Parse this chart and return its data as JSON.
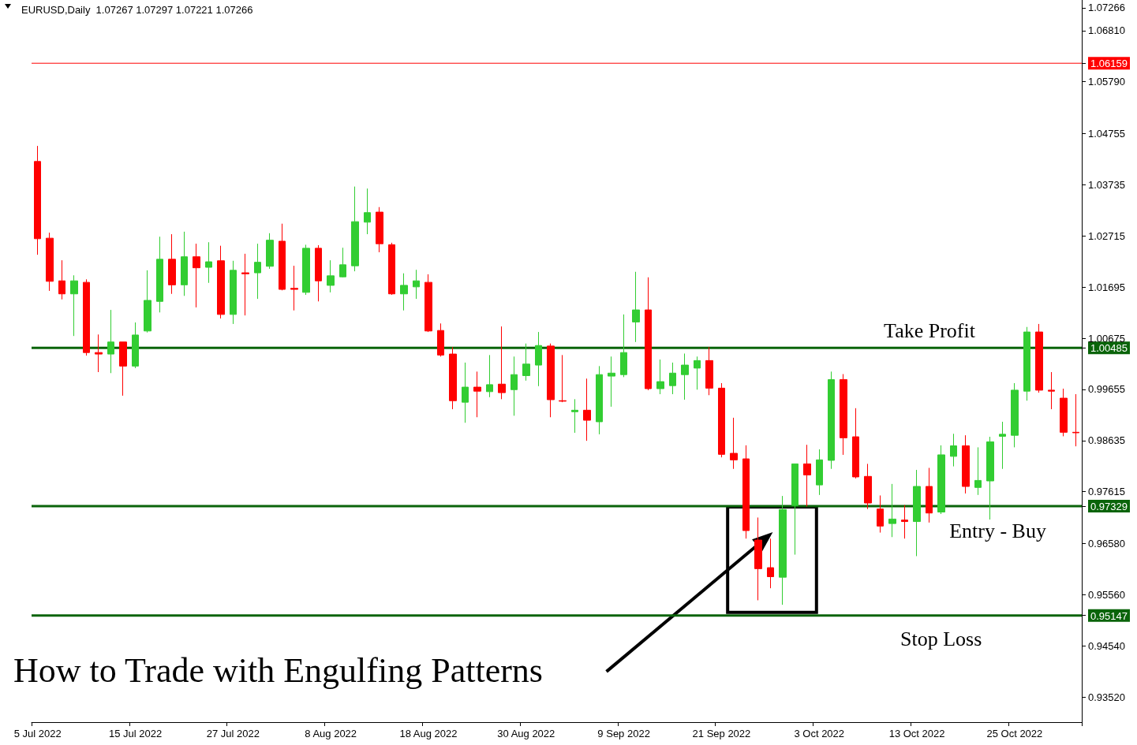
{
  "chart_data": {
    "type": "candlestick",
    "title": "How to Trade with Engulfing Patterns",
    "subtitle": "EURUSD,Daily  1.07267 1.07297 1.07221 1.07266",
    "categories": [
      "5 Jul 2022",
      null,
      null,
      null,
      null,
      null,
      null,
      null,
      "15 Jul 2022",
      null,
      null,
      null,
      null,
      null,
      null,
      null,
      "27 Jul 2022",
      null,
      null,
      null,
      null,
      null,
      null,
      null,
      "8 Aug 2022",
      null,
      null,
      null,
      null,
      null,
      null,
      null,
      "18 Aug 2022",
      null,
      null,
      null,
      null,
      null,
      null,
      null,
      "30 Aug 2022",
      null,
      null,
      null,
      null,
      null,
      null,
      null,
      "9 Sep 2022",
      null,
      null,
      null,
      null,
      null,
      null,
      null,
      "21 Sep 2022",
      null,
      null,
      null,
      null,
      null,
      null,
      null,
      "3 Oct 2022",
      null,
      null,
      null,
      null,
      null,
      null,
      null,
      "13 Oct 2022",
      null,
      null,
      null,
      null,
      null,
      null,
      null,
      "25 Oct 2022",
      null,
      null,
      null,
      null,
      null
    ],
    "ohlc": [
      [
        1.042,
        1.0451,
        1.0234,
        1.0266
      ],
      [
        1.0267,
        1.0278,
        1.0162,
        1.0181
      ],
      [
        1.0182,
        1.0223,
        1.0145,
        1.0156
      ],
      [
        1.0156,
        1.0193,
        1.0072,
        1.0182
      ],
      [
        1.0179,
        1.0185,
        1.0033,
        1.0039
      ],
      [
        1.0039,
        1.0075,
        1.0,
        1.0036
      ],
      [
        1.0036,
        1.0124,
        0.9998,
        1.006
      ],
      [
        1.006,
        1.006,
        0.9953,
        1.0012
      ],
      [
        1.0012,
        1.0099,
        1.0008,
        1.0074
      ],
      [
        1.0082,
        1.0203,
        1.0079,
        1.0143
      ],
      [
        1.0141,
        1.027,
        1.0119,
        1.0225
      ],
      [
        1.0225,
        1.0275,
        1.0156,
        1.0174
      ],
      [
        1.0174,
        1.028,
        1.0152,
        1.023
      ],
      [
        1.023,
        1.0256,
        1.0129,
        1.0208
      ],
      [
        1.0209,
        1.0259,
        1.0178,
        1.022
      ],
      [
        1.0222,
        1.0252,
        1.0107,
        1.0115
      ],
      [
        1.0115,
        1.0222,
        1.0096,
        1.0203
      ],
      [
        1.0198,
        1.0236,
        1.0113,
        1.0196
      ],
      [
        1.0198,
        1.0256,
        1.0146,
        1.0219
      ],
      [
        1.0211,
        1.0277,
        1.0206,
        1.0263
      ],
      [
        1.0261,
        1.0296,
        1.0163,
        1.0165
      ],
      [
        1.0167,
        1.0212,
        1.0123,
        1.0165
      ],
      [
        1.0159,
        1.0254,
        1.0154,
        1.0247
      ],
      [
        1.0247,
        1.0253,
        1.0141,
        1.0182
      ],
      [
        1.0173,
        1.0223,
        1.0159,
        1.0192
      ],
      [
        1.019,
        1.0248,
        1.0189,
        1.0214
      ],
      [
        1.0212,
        1.037,
        1.0201,
        1.03
      ],
      [
        1.0299,
        1.0366,
        1.0275,
        1.0318
      ],
      [
        1.0319,
        1.0329,
        1.0239,
        1.0256
      ],
      [
        1.0254,
        1.0258,
        1.0154,
        1.0156
      ],
      [
        1.0156,
        1.0197,
        1.0123,
        1.0173
      ],
      [
        1.017,
        1.0204,
        1.0146,
        1.0182
      ],
      [
        1.0179,
        1.0195,
        1.008,
        1.0082
      ],
      [
        1.0083,
        1.0097,
        1.0031,
        1.0034
      ],
      [
        1.0036,
        1.005,
        0.9926,
        0.9943
      ],
      [
        0.994,
        1.0019,
        0.9899,
        0.997
      ],
      [
        0.997,
        1.0001,
        0.991,
        0.9962
      ],
      [
        0.9961,
        1.0034,
        0.995,
        0.9975
      ],
      [
        0.9976,
        1.0091,
        0.9946,
        0.9959
      ],
      [
        0.9965,
        1.0031,
        0.9913,
        0.9995
      ],
      [
        0.9993,
        1.0057,
        0.9983,
        1.0016
      ],
      [
        1.0014,
        1.008,
        0.9972,
        1.0053
      ],
      [
        1.0052,
        1.0057,
        0.991,
        0.9945
      ],
      [
        0.9943,
        1.0034,
        0.994,
        0.9942
      ],
      [
        0.9921,
        0.9946,
        0.9879,
        0.9924
      ],
      [
        0.9924,
        0.9987,
        0.9863,
        0.9904
      ],
      [
        0.9901,
        1.0012,
        0.9876,
        0.9995
      ],
      [
        0.9992,
        1.0031,
        0.9931,
        0.9998
      ],
      [
        0.9995,
        1.0115,
        0.999,
        1.0039
      ],
      [
        1.01,
        1.02,
        1.006,
        1.0124
      ],
      [
        1.0124,
        1.0189,
        0.9964,
        0.9967
      ],
      [
        0.9967,
        1.0025,
        0.9956,
        0.9981
      ],
      [
        0.9973,
        1.0019,
        0.9956,
        0.9998
      ],
      [
        0.9995,
        1.0037,
        0.9945,
        1.0014
      ],
      [
        1.0008,
        1.0031,
        0.9965,
        1.0023
      ],
      [
        1.0023,
        1.005,
        0.9954,
        0.9968
      ],
      [
        0.9968,
        0.9978,
        0.983,
        0.9836
      ],
      [
        0.9838,
        0.9909,
        0.9807,
        0.9825
      ],
      [
        0.9827,
        0.9854,
        0.9668,
        0.9684
      ],
      [
        0.9665,
        0.971,
        0.9545,
        0.9608
      ],
      [
        0.961,
        0.9668,
        0.9569,
        0.9592
      ],
      [
        0.9591,
        0.9753,
        0.9536,
        0.9726
      ],
      [
        0.9734,
        0.9817,
        0.9636,
        0.9817
      ],
      [
        0.9817,
        0.9855,
        0.9732,
        0.9795
      ],
      [
        0.9775,
        0.9846,
        0.9755,
        0.9825
      ],
      [
        0.9824,
        1.0001,
        0.9807,
        0.9985
      ],
      [
        0.9985,
        0.9996,
        0.9835,
        0.9869
      ],
      [
        0.9871,
        0.9928,
        0.9788,
        0.9791
      ],
      [
        0.9792,
        0.9817,
        0.9727,
        0.9739
      ],
      [
        0.9727,
        0.9754,
        0.968,
        0.9693
      ],
      [
        0.9698,
        0.9777,
        0.9671,
        0.9707
      ],
      [
        0.9705,
        0.9735,
        0.9668,
        0.9702
      ],
      [
        0.9702,
        0.9805,
        0.9633,
        0.9772
      ],
      [
        0.9772,
        0.9809,
        0.97,
        0.9719
      ],
      [
        0.9721,
        0.9854,
        0.9717,
        0.9835
      ],
      [
        0.9832,
        0.9877,
        0.9812,
        0.9853
      ],
      [
        0.9853,
        0.9874,
        0.9758,
        0.9772
      ],
      [
        0.977,
        0.985,
        0.9755,
        0.9784
      ],
      [
        0.9783,
        0.9871,
        0.9706,
        0.9861
      ],
      [
        0.9872,
        0.9901,
        0.9807,
        0.9876
      ],
      [
        0.9874,
        0.9978,
        0.985,
        0.9964
      ],
      [
        0.9962,
        1.009,
        0.9943,
        1.008
      ],
      [
        1.008,
        1.0096,
        0.9959,
        0.9964
      ],
      [
        0.9964,
        1.0,
        0.9926,
        0.9962
      ],
      [
        0.9948,
        0.9967,
        0.9872,
        0.988
      ],
      [
        0.988,
        0.9956,
        0.9852,
        0.9879
      ]
    ],
    "colors": [
      "#ff0000",
      "#ff0000",
      "#ff0000",
      "#32cd32",
      "#ff0000",
      "#ff0000",
      "#32cd32",
      "#ff0000",
      "#32cd32",
      "#32cd32",
      "#32cd32",
      "#ff0000",
      "#32cd32",
      "#ff0000",
      "#32cd32",
      "#ff0000",
      "#32cd32",
      "#ff0000",
      "#32cd32",
      "#32cd32",
      "#ff0000",
      "#ff0000",
      "#32cd32",
      "#ff0000",
      "#32cd32",
      "#32cd32",
      "#32cd32",
      "#32cd32",
      "#ff0000",
      "#ff0000",
      "#32cd32",
      "#32cd32",
      "#ff0000",
      "#ff0000",
      "#ff0000",
      "#32cd32",
      "#ff0000",
      "#32cd32",
      "#ff0000",
      "#32cd32",
      "#32cd32",
      "#32cd32",
      "#ff0000",
      "#ff0000",
      "#32cd32",
      "#ff0000",
      "#32cd32",
      "#32cd32",
      "#32cd32",
      "#32cd32",
      "#ff0000",
      "#32cd32",
      "#32cd32",
      "#32cd32",
      "#32cd32",
      "#ff0000",
      "#ff0000",
      "#ff0000",
      "#ff0000",
      "#ff0000",
      "#ff0000",
      "#32cd32",
      "#32cd32",
      "#ff0000",
      "#32cd32",
      "#32cd32",
      "#ff0000",
      "#ff0000",
      "#ff0000",
      "#ff0000",
      "#32cd32",
      "#ff0000",
      "#32cd32",
      "#ff0000",
      "#32cd32",
      "#32cd32",
      "#ff0000",
      "#32cd32",
      "#32cd32",
      "#32cd32",
      "#32cd32",
      "#32cd32",
      "#ff0000",
      "#ff0000",
      "#ff0000",
      "#ff0000"
    ],
    "ylim": [
      0.9302,
      1.0742
    ],
    "yticks": [
      {
        "value": 0.9352,
        "label": "0.93520"
      },
      {
        "value": 0.9454,
        "label": "0.94540"
      },
      {
        "value": 0.95147,
        "label": "0.95147"
      },
      {
        "value": 0.97329,
        "label": "0.97329"
      },
      {
        "value": 1.00485,
        "label": "1.00485"
      },
      {
        "value": 1.06159,
        "label": "1.06159"
      },
      {
        "value": 0.9556,
        "label": "0.95560"
      },
      {
        "value": 0.9658,
        "label": "0.96580"
      },
      0.97615,
      0.98635,
      0.99655,
      1.00675,
      1.01695,
      1.02715,
      1.03735,
      1.04755,
      {
        "value": 1.0579,
        "label": "1.05790"
      },
      {
        "value": 1.0681,
        "label": "1.06810"
      },
      1.07266
    ],
    "ref_lines": [
      {
        "axis": "y",
        "value": 1.06159,
        "color": "#ff0000"
      },
      {
        "axis": "y",
        "value": 1.00485,
        "label": "Take Profit",
        "color": "#0a640a"
      },
      {
        "axis": "y",
        "value": 0.97329,
        "label": "Entry - Buy",
        "color": "#0a640a"
      },
      {
        "axis": "y",
        "value": 0.95147,
        "label": "Stop Loss",
        "color": "#0a640a"
      }
    ],
    "grid": false
  }
}
